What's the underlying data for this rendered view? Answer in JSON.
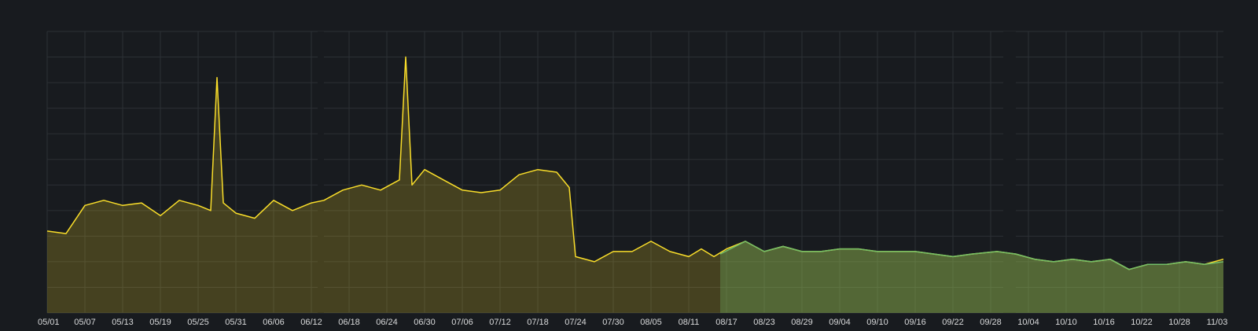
{
  "chart_data": {
    "type": "area",
    "title": "",
    "xlabel": "",
    "ylabel": "",
    "ylim": [
      0,
      110
    ],
    "grid": true,
    "legend": "none",
    "x_ticks": [
      "05/01",
      "05/07",
      "05/13",
      "05/19",
      "05/25",
      "05/31",
      "06/06",
      "06/12",
      "06/18",
      "06/24",
      "06/30",
      "07/06",
      "07/12",
      "07/18",
      "07/24",
      "07/30",
      "08/05",
      "08/11",
      "08/17",
      "08/23",
      "08/29",
      "09/04",
      "09/10",
      "09/16",
      "09/22",
      "09/28",
      "10/04",
      "10/10",
      "10/16",
      "10/22",
      "10/28",
      "11/03"
    ],
    "x_range": [
      "05/01",
      "11/04"
    ],
    "gaps": [
      {
        "start": "06/13",
        "end": "06/14"
      },
      {
        "start": "09/30",
        "end": "10/02"
      }
    ],
    "series": [
      {
        "color": "#fade2a",
        "fill": "rgba(250,222,42,0.20)",
        "x": [
          "05/01",
          "05/04",
          "05/07",
          "05/10",
          "05/13",
          "05/16",
          "05/19",
          "05/22",
          "05/25",
          "05/27",
          "05/28",
          "05/29",
          "05/31",
          "06/03",
          "06/06",
          "06/09",
          "06/12",
          "06/14",
          "06/17",
          "06/20",
          "06/23",
          "06/26",
          "06/27",
          "06/28",
          "06/30",
          "07/03",
          "07/06",
          "07/09",
          "07/12",
          "07/15",
          "07/18",
          "07/21",
          "07/23",
          "07/24",
          "07/27",
          "07/30",
          "08/02",
          "08/05",
          "08/08",
          "08/11",
          "08/13",
          "08/15",
          "08/17",
          "08/20",
          "08/23",
          "08/26",
          "08/29",
          "09/01",
          "09/04",
          "09/07",
          "09/10",
          "09/13",
          "09/16",
          "09/19",
          "09/22",
          "09/25",
          "09/29",
          "10/02",
          "10/05",
          "10/08",
          "10/11",
          "10/14",
          "10/17",
          "10/20",
          "10/23",
          "10/26",
          "10/29",
          "11/01",
          "11/04"
        ],
        "values": [
          32,
          31,
          42,
          44,
          42,
          43,
          38,
          44,
          42,
          40,
          92,
          43,
          39,
          37,
          44,
          40,
          43,
          44,
          48,
          50,
          48,
          52,
          100,
          50,
          56,
          52,
          48,
          47,
          48,
          54,
          56,
          55,
          49,
          22,
          20,
          24,
          24,
          28,
          24,
          22,
          25,
          22,
          25,
          28,
          24,
          26,
          24,
          24,
          25,
          25,
          24,
          24,
          24,
          23,
          22,
          23,
          24,
          23,
          21,
          20,
          21,
          20,
          21,
          17,
          19,
          19,
          20,
          19,
          21
        ]
      },
      {
        "color": "#73bf69",
        "fill": "rgba(115,191,105,0.30)",
        "x": [
          "08/16",
          "08/20",
          "08/23",
          "08/26",
          "08/29",
          "09/01",
          "09/04",
          "09/07",
          "09/10",
          "09/13",
          "09/16",
          "09/19",
          "09/22",
          "09/25",
          "09/29",
          "10/02",
          "10/05",
          "10/08",
          "10/11",
          "10/14",
          "10/17",
          "10/20",
          "10/23",
          "10/26",
          "10/29",
          "11/01",
          "11/04"
        ],
        "values": [
          23,
          28,
          24,
          26,
          24,
          24,
          25,
          25,
          24,
          24,
          24,
          23,
          22,
          23,
          24,
          23,
          21,
          20,
          21,
          20,
          21,
          17,
          19,
          19,
          20,
          19,
          20
        ]
      }
    ]
  }
}
